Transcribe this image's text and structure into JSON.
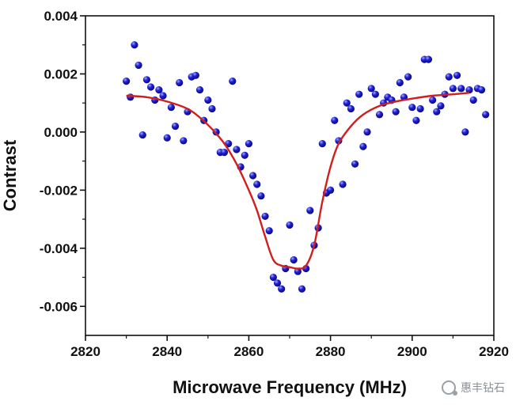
{
  "chart_data": {
    "type": "scatter",
    "xlabel": "Microwave Frequency (MHz)",
    "ylabel": "Contrast",
    "xlim": [
      2820,
      2920
    ],
    "ylim": [
      -0.007,
      0.004
    ],
    "xticks": [
      2820,
      2840,
      2860,
      2880,
      2900,
      2920
    ],
    "yticks": [
      -0.006,
      -0.004,
      -0.002,
      0.0,
      0.002,
      0.004
    ],
    "ytick_labels": [
      "-0.006",
      "-0.004",
      "-0.002",
      "0.000",
      "0.002",
      "0.004"
    ],
    "grid": false,
    "series": [
      {
        "kind": "scatter",
        "color": "#1f1fd6",
        "points": [
          [
            2830,
            0.00175
          ],
          [
            2831,
            0.0012
          ],
          [
            2832,
            0.003
          ],
          [
            2833,
            0.0023
          ],
          [
            2834,
            -0.0001
          ],
          [
            2835,
            0.0018
          ],
          [
            2836,
            0.00155
          ],
          [
            2837,
            0.0011
          ],
          [
            2838,
            0.00145
          ],
          [
            2839,
            0.00125
          ],
          [
            2840,
            -0.0002
          ],
          [
            2841,
            0.00085
          ],
          [
            2842,
            0.0002
          ],
          [
            2843,
            0.0017
          ],
          [
            2844,
            -0.0003
          ],
          [
            2845,
            0.0007
          ],
          [
            2846,
            0.0019
          ],
          [
            2847,
            0.00195
          ],
          [
            2848,
            0.00145
          ],
          [
            2849,
            0.0004
          ],
          [
            2850,
            0.0011
          ],
          [
            2851,
            0.0008
          ],
          [
            2852,
            0.0
          ],
          [
            2853,
            -0.0007
          ],
          [
            2854,
            -0.0007
          ],
          [
            2855,
            -0.0004
          ],
          [
            2856,
            0.00175
          ],
          [
            2857,
            -0.0006
          ],
          [
            2858,
            -0.0012
          ],
          [
            2859,
            -0.0008
          ],
          [
            2860,
            -0.0004
          ],
          [
            2861,
            -0.0015
          ],
          [
            2862,
            -0.0018
          ],
          [
            2863,
            -0.0022
          ],
          [
            2864,
            -0.0029
          ],
          [
            2865,
            -0.0034
          ],
          [
            2866,
            -0.005
          ],
          [
            2867,
            -0.0052
          ],
          [
            2868,
            -0.0054
          ],
          [
            2869,
            -0.0047
          ],
          [
            2870,
            -0.0032
          ],
          [
            2871,
            -0.0044
          ],
          [
            2872,
            -0.0048
          ],
          [
            2873,
            -0.0054
          ],
          [
            2874,
            -0.0047
          ],
          [
            2875,
            -0.0027
          ],
          [
            2876,
            -0.0039
          ],
          [
            2877,
            -0.0033
          ],
          [
            2878,
            -0.0004
          ],
          [
            2879,
            -0.0021
          ],
          [
            2880,
            -0.002
          ],
          [
            2881,
            0.0004
          ],
          [
            2882,
            -0.0003
          ],
          [
            2883,
            -0.0018
          ],
          [
            2884,
            0.001
          ],
          [
            2885,
            0.0008
          ],
          [
            2886,
            -0.0011
          ],
          [
            2887,
            0.0013
          ],
          [
            2888,
            -0.0005
          ],
          [
            2889,
            0.0
          ],
          [
            2890,
            0.0015
          ],
          [
            2891,
            0.0013
          ],
          [
            2892,
            0.0006
          ],
          [
            2893,
            0.001
          ],
          [
            2894,
            0.0012
          ],
          [
            2895,
            0.0011
          ],
          [
            2896,
            0.0007
          ],
          [
            2897,
            0.0017
          ],
          [
            2898,
            0.0012
          ],
          [
            2899,
            0.0019
          ],
          [
            2900,
            0.00085
          ],
          [
            2901,
            0.0004
          ],
          [
            2902,
            0.0008
          ],
          [
            2903,
            0.0025
          ],
          [
            2904,
            0.0025
          ],
          [
            2905,
            0.0011
          ],
          [
            2906,
            0.0007
          ],
          [
            2907,
            0.0009
          ],
          [
            2908,
            0.0013
          ],
          [
            2909,
            0.0019
          ],
          [
            2910,
            0.0015
          ],
          [
            2911,
            0.00195
          ],
          [
            2912,
            0.0015
          ],
          [
            2913,
            0.0
          ],
          [
            2914,
            0.00145
          ],
          [
            2915,
            0.0011
          ],
          [
            2916,
            0.0015
          ],
          [
            2917,
            0.00145
          ],
          [
            2918,
            0.0006
          ]
        ]
      },
      {
        "kind": "line",
        "color": "#d11f1f",
        "points": [
          [
            2830,
            0.00125
          ],
          [
            2835,
            0.0012
          ],
          [
            2840,
            0.00105
          ],
          [
            2845,
            0.0008
          ],
          [
            2848,
            0.0005
          ],
          [
            2851,
            0.0001
          ],
          [
            2854,
            -0.0004
          ],
          [
            2857,
            -0.0011
          ],
          [
            2860,
            -0.002
          ],
          [
            2862,
            -0.0027
          ],
          [
            2864,
            -0.0036
          ],
          [
            2866,
            -0.0044
          ],
          [
            2868,
            -0.0046
          ],
          [
            2870,
            -0.00465
          ],
          [
            2872,
            -0.0047
          ],
          [
            2874,
            -0.0046
          ],
          [
            2876,
            -0.0039
          ],
          [
            2878,
            -0.0024
          ],
          [
            2880,
            -0.0012
          ],
          [
            2882,
            -0.0004
          ],
          [
            2885,
            0.0002
          ],
          [
            2888,
            0.0006
          ],
          [
            2892,
            0.0009
          ],
          [
            2896,
            0.00105
          ],
          [
            2900,
            0.00115
          ],
          [
            2905,
            0.00125
          ],
          [
            2910,
            0.0013
          ],
          [
            2914,
            0.00135
          ]
        ]
      }
    ]
  },
  "watermark": {
    "text": "惠丰钻石"
  }
}
